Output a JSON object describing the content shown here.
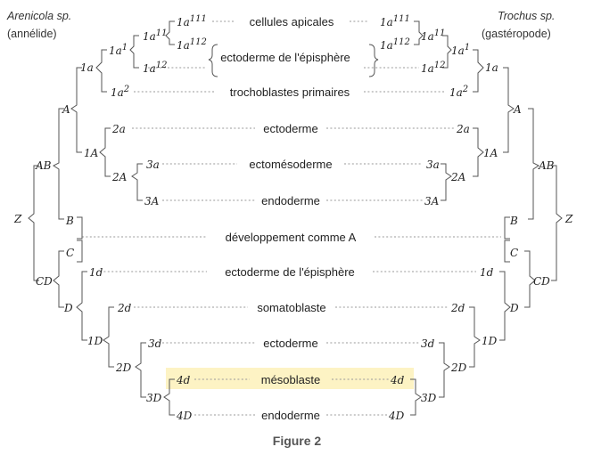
{
  "left_species": {
    "name": "Arenicola sp.",
    "group": "(annélide)"
  },
  "right_species": {
    "name": "Trochus sp.",
    "group": "(gastéropode)"
  },
  "caption": "Figure 2",
  "highlight_color": "#fdf3c4",
  "fates": [
    {
      "key": "apical",
      "label": "cellules apicales",
      "highlight": false
    },
    {
      "key": "ecto_episphere_1",
      "label": "ectoderme de l'épisphère",
      "highlight": false
    },
    {
      "key": "trochoblastes",
      "label": "trochoblastes primaires",
      "highlight": false
    },
    {
      "key": "ectoderme_1",
      "label": "ectoderme",
      "highlight": false
    },
    {
      "key": "ectomesoderme",
      "label": "ectomésoderme",
      "highlight": false
    },
    {
      "key": "endoderme_1",
      "label": "endoderme",
      "highlight": false
    },
    {
      "key": "dev_A",
      "label": "développement comme A",
      "highlight": false
    },
    {
      "key": "ecto_episphere_2",
      "label": "ectoderme de l'épisphère",
      "highlight": false
    },
    {
      "key": "somatoblaste",
      "label": "somatoblaste",
      "highlight": false
    },
    {
      "key": "ectoderme_2",
      "label": "ectoderme",
      "highlight": false
    },
    {
      "key": "mesoblaste",
      "label": "mésoblaste",
      "highlight": true
    },
    {
      "key": "endoderme_2",
      "label": "endoderme",
      "highlight": false
    }
  ],
  "cells": {
    "left": {
      "Z": "Z",
      "AB": "AB",
      "CD": "CD",
      "A": "A",
      "B": "B",
      "C": "C",
      "D": "D",
      "1A": "1A",
      "2A": "2A",
      "3A": "3A",
      "1a": "1a",
      "2a": "2a",
      "3a": "3a",
      "1a1": "1a",
      "1a2": "1a",
      "1a11": "1a",
      "1a12": "1a",
      "1a111": "1a",
      "1a112": "1a",
      "1D": "1D",
      "2D": "2D",
      "3D": "3D",
      "1d": "1d",
      "2d": "2d",
      "3d": "3d",
      "4d": "4d",
      "4D": "4D",
      "sup_1": "1",
      "sup_2": "2",
      "sup_11": "11",
      "sup_12": "12",
      "sup_111": "111",
      "sup_112": "112"
    },
    "right": {
      "Z": "Z",
      "AB": "AB",
      "CD": "CD",
      "A": "A",
      "B": "B",
      "C": "C",
      "D": "D",
      "1A": "1A",
      "2A": "2A",
      "3A": "3A",
      "1a": "1a",
      "2a": "2a",
      "3a": "3a",
      "1a1": "1a",
      "1a2": "1a",
      "1a11": "1a",
      "1a12": "1a",
      "1a111": "1a",
      "1a112": "1a",
      "1D": "1D",
      "2D": "2D",
      "3D": "3D",
      "1d": "1d",
      "2d": "2d",
      "3d": "3d",
      "4d": "4d",
      "4D": "4D",
      "sup_1": "1",
      "sup_2": "2",
      "sup_11": "11",
      "sup_12": "12",
      "sup_111": "111",
      "sup_112": "112"
    }
  }
}
